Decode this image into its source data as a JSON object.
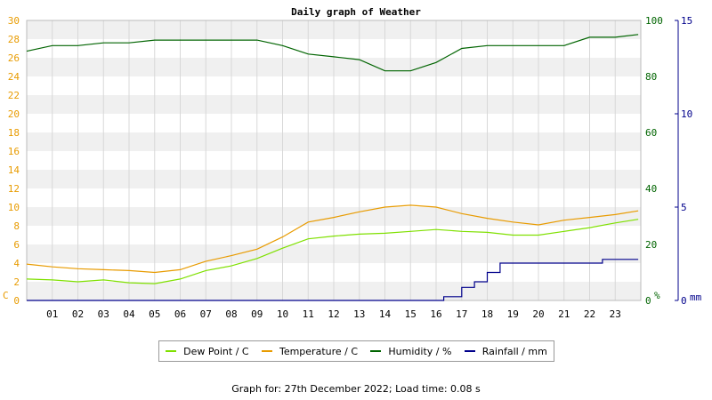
{
  "chart_data": {
    "type": "line",
    "title": "Daily graph of Weather",
    "x_ticks": [
      "01",
      "02",
      "03",
      "04",
      "05",
      "06",
      "07",
      "08",
      "09",
      "10",
      "11",
      "12",
      "13",
      "14",
      "15",
      "16",
      "17",
      "18",
      "19",
      "20",
      "21",
      "22",
      "23"
    ],
    "xlim": [
      0,
      24
    ],
    "axes": {
      "left": {
        "unit": "C",
        "ylim": [
          0,
          30
        ],
        "ticks": [
          "0",
          "2",
          "4",
          "6",
          "8",
          "10",
          "12",
          "14",
          "16",
          "18",
          "20",
          "22",
          "24",
          "26",
          "28",
          "30"
        ],
        "color": "#e89b00"
      },
      "humidity": {
        "unit": "%",
        "ylim": [
          0,
          100
        ],
        "ticks": [
          "0",
          "20",
          "40",
          "60",
          "80",
          "100"
        ],
        "color": "#006400"
      },
      "rain": {
        "unit": "mm",
        "ylim": [
          0,
          15
        ],
        "ticks": [
          "0",
          "5",
          "10",
          "15"
        ],
        "color": "#00008b"
      }
    },
    "grid": true,
    "series": [
      {
        "name": "Dew Point / C",
        "axis": "left",
        "color": "#7fe000",
        "points": [
          [
            0,
            2.3
          ],
          [
            1,
            2.2
          ],
          [
            2,
            2.0
          ],
          [
            3,
            2.2
          ],
          [
            4,
            1.9
          ],
          [
            5,
            1.8
          ],
          [
            6,
            2.3
          ],
          [
            7,
            3.2
          ],
          [
            8,
            3.7
          ],
          [
            9,
            4.5
          ],
          [
            10,
            5.6
          ],
          [
            11,
            6.6
          ],
          [
            12,
            6.9
          ],
          [
            13,
            7.1
          ],
          [
            14,
            7.2
          ],
          [
            15,
            7.4
          ],
          [
            16,
            7.6
          ],
          [
            17,
            7.4
          ],
          [
            18,
            7.3
          ],
          [
            19,
            7.0
          ],
          [
            20,
            7.0
          ],
          [
            21,
            7.4
          ],
          [
            22,
            7.8
          ],
          [
            23,
            8.3
          ],
          [
            23.9,
            8.7
          ]
        ]
      },
      {
        "name": "Temperature / C",
        "axis": "left",
        "color": "#e89b00",
        "points": [
          [
            0,
            3.9
          ],
          [
            1,
            3.6
          ],
          [
            2,
            3.4
          ],
          [
            3,
            3.3
          ],
          [
            4,
            3.2
          ],
          [
            5,
            3.0
          ],
          [
            6,
            3.3
          ],
          [
            7,
            4.2
          ],
          [
            8,
            4.8
          ],
          [
            9,
            5.5
          ],
          [
            10,
            6.8
          ],
          [
            11,
            8.4
          ],
          [
            12,
            8.9
          ],
          [
            13,
            9.5
          ],
          [
            14,
            10.0
          ],
          [
            15,
            10.2
          ],
          [
            16,
            10.0
          ],
          [
            17,
            9.3
          ],
          [
            18,
            8.8
          ],
          [
            19,
            8.4
          ],
          [
            20,
            8.1
          ],
          [
            21,
            8.6
          ],
          [
            22,
            8.9
          ],
          [
            23,
            9.2
          ],
          [
            23.9,
            9.6
          ]
        ]
      },
      {
        "name": "Humidity / %",
        "axis": "humidity",
        "color": "#006400",
        "points": [
          [
            0,
            89
          ],
          [
            1,
            91
          ],
          [
            2,
            91
          ],
          [
            3,
            92
          ],
          [
            4,
            92
          ],
          [
            5,
            93
          ],
          [
            6,
            93
          ],
          [
            7,
            93
          ],
          [
            8,
            93
          ],
          [
            9,
            93
          ],
          [
            10,
            91
          ],
          [
            11,
            88
          ],
          [
            12,
            87
          ],
          [
            13,
            86
          ],
          [
            14,
            82
          ],
          [
            15,
            82
          ],
          [
            16,
            85
          ],
          [
            17,
            90
          ],
          [
            18,
            91
          ],
          [
            19,
            91
          ],
          [
            20,
            91
          ],
          [
            21,
            91
          ],
          [
            22,
            94
          ],
          [
            23,
            94
          ],
          [
            23.9,
            95
          ]
        ]
      },
      {
        "name": "Rainfall / mm",
        "axis": "rain",
        "color": "#00008b",
        "points": [
          [
            0,
            0
          ],
          [
            16,
            0
          ],
          [
            16.3,
            0.2
          ],
          [
            17,
            0.7
          ],
          [
            17.5,
            1.0
          ],
          [
            18,
            1.5
          ],
          [
            18.5,
            2.0
          ],
          [
            19,
            2.0
          ],
          [
            19.5,
            2.0
          ],
          [
            20,
            2.0
          ],
          [
            21,
            2.0
          ],
          [
            22,
            2.0
          ],
          [
            22.5,
            2.2
          ],
          [
            23,
            2.2
          ],
          [
            23.9,
            2.2
          ]
        ]
      }
    ]
  },
  "legend": [
    "Dew Point / C",
    "Temperature / C",
    "Humidity / %",
    "Rainfall / mm"
  ],
  "footer": "Graph for: 27th December 2022; Load time: 0.08 s"
}
